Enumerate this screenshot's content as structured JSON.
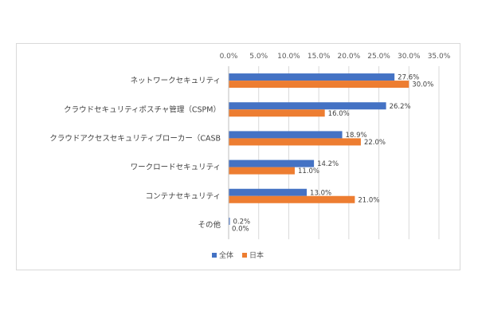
{
  "chart_data": {
    "type": "bar",
    "orientation": "horizontal",
    "categories": [
      "ネットワークセキュリティ",
      "クラウドセキュリティポスチャ管理（CSPM）",
      "クラウドアクセスセキュリティブローカー（CASB）",
      "ワークロードセキュリティ",
      "コンテナセキュリティ",
      "その他"
    ],
    "category_labels": [
      "ネットワークセキュリティ",
      "クラウドセキュリティポスチャ管理（CSPM）",
      "クラウドアクセスセキュリティブローカー（CASB",
      "ワークロードセキュリティ",
      "コンテナセキュリティ",
      "その他"
    ],
    "series": [
      {
        "name": "全体",
        "color": "#4472c4",
        "values": [
          27.6,
          26.2,
          18.9,
          14.2,
          13.0,
          0.2
        ],
        "labels": [
          "27.6%",
          "26.2%",
          "18.9%",
          "14.2%",
          "13.0%",
          "0.2%"
        ]
      },
      {
        "name": "日本",
        "color": "#ed7d31",
        "values": [
          30.0,
          16.0,
          22.0,
          11.0,
          21.0,
          0.0
        ],
        "labels": [
          "30.0%",
          "16.0%",
          "22.0%",
          "11.0%",
          "21.0%",
          "0.0%"
        ]
      }
    ],
    "xlim": [
      0,
      35
    ],
    "x_ticks": [
      "0.0%",
      "5.0%",
      "10.0%",
      "15.0%",
      "20.0%",
      "25.0%",
      "30.0%",
      "35.0%"
    ],
    "x_axis_position": "top",
    "grid": true,
    "legend": "bottom"
  }
}
